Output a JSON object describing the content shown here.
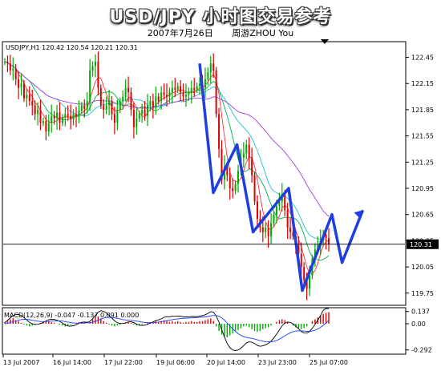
{
  "header": {
    "title": "USD/JPY  小时图交易参考",
    "date": "2007年7月26日",
    "author": "周游ZHOU  You"
  },
  "main_panel": {
    "label": "USDJPY,H1  120.42 120.54 120.21 120.31",
    "current_price_label": "120.31"
  },
  "macd_panel": {
    "label": "MACD(12,26,9) -0.047 -0.137 0.091 0.000"
  },
  "colors": {
    "up_bar": "#00aa00",
    "down_bar": "#dd0000",
    "zigzag": "#1f3ee0",
    "ma_red": "#ff3030",
    "ma_green": "#00b050",
    "ma_cyan": "#20c0d0",
    "ma_violet": "#a040e0"
  },
  "chart_data": [
    {
      "type": "line",
      "name": "price",
      "y_ticks": [
        "122.45",
        "122.15",
        "121.85",
        "121.55",
        "121.25",
        "120.95",
        "120.65",
        "120.35",
        "120.05",
        "119.75"
      ],
      "ylim": [
        119.62,
        122.62
      ],
      "x_ticks": [
        "13 Jul 2007",
        "16 Jul 14:00",
        "17 Jul 22:00",
        "19 Jul 06:00",
        "20 Jul 14:00",
        "23 Jul 23:00",
        "25 Jul 07:00"
      ],
      "current_price": 120.31,
      "candles": {
        "comment": "approximate close values per hourly bar",
        "close": [
          122.4,
          122.38,
          122.3,
          122.32,
          122.2,
          122.1,
          122.15,
          121.98,
          122.02,
          121.95,
          121.9,
          121.8,
          121.85,
          121.7,
          121.72,
          121.6,
          121.7,
          121.78,
          121.75,
          121.82,
          121.7,
          121.76,
          121.8,
          121.78,
          121.74,
          121.8,
          121.78,
          121.84,
          121.9,
          121.86,
          121.95,
          122.3,
          122.35,
          122.4,
          122.1,
          121.9,
          121.85,
          121.9,
          121.95,
          121.8,
          121.7,
          121.85,
          121.95,
          122.0,
          122.1,
          122.05,
          121.85,
          121.65,
          121.75,
          121.8,
          121.85,
          121.78,
          121.9,
          121.95,
          121.88,
          122.0,
          121.95,
          122.05,
          122.02,
          122.0,
          122.05,
          122.1,
          122.08,
          122.12,
          122.05,
          122.0,
          122.02,
          122.05,
          122.1,
          122.08,
          122.12,
          122.15,
          122.1,
          122.2,
          122.28,
          122.38,
          122.3,
          121.8,
          121.4,
          121.05,
          121.2,
          121.1,
          120.95,
          120.92,
          121.0,
          121.15,
          121.3,
          121.35,
          121.45,
          121.3,
          121.1,
          120.8,
          120.6,
          120.5,
          120.45,
          120.5,
          120.4,
          120.55,
          120.65,
          120.75,
          120.8,
          120.88,
          120.7,
          120.5,
          120.45,
          120.4,
          120.3,
          120.2,
          120.05,
          119.9,
          119.8,
          119.95,
          120.15,
          120.25,
          120.3,
          120.35,
          120.42,
          120.38,
          120.31
        ]
      },
      "zigzag": {
        "x": [
          0.0,
          2.3,
          6.3,
          9.0,
          15.0,
          17.3,
          22.3,
          24.0,
          27.5
        ],
        "y": [
          122.38,
          120.9,
          121.45,
          120.45,
          120.95,
          119.78,
          120.65,
          120.1,
          120.7
        ]
      }
    },
    {
      "type": "bar",
      "name": "MACD",
      "y_ticks": [
        "0.137",
        "0.00",
        "-0.292"
      ],
      "ylim": [
        -0.33,
        0.17
      ],
      "histogram": [
        0.02,
        0.04,
        0.05,
        0.06,
        0.04,
        0.03,
        0.01,
        -0.01,
        -0.02,
        -0.03,
        -0.02,
        -0.01,
        0.0,
        0.01,
        0.02,
        0.03,
        0.03,
        0.02,
        0.01,
        0.0,
        -0.01,
        -0.02,
        -0.03,
        -0.02,
        -0.01,
        0.0,
        0.01,
        0.02,
        0.02,
        0.01,
        0.0,
        0.02,
        0.05,
        0.07,
        0.08,
        0.06,
        0.03,
        0.01,
        -0.01,
        -0.02,
        -0.03,
        -0.02,
        -0.01,
        0.0,
        0.01,
        0.02,
        0.01,
        -0.01,
        -0.02,
        -0.02,
        -0.01,
        0.0,
        0.01,
        0.02,
        0.02,
        0.03,
        0.02,
        0.03,
        0.04,
        0.03,
        0.02,
        0.03,
        0.02,
        0.03,
        0.02,
        0.01,
        0.02,
        0.02,
        0.03,
        0.02,
        0.02,
        0.03,
        0.03,
        0.04,
        0.05,
        0.06,
        0.03,
        -0.03,
        -0.08,
        -0.12,
        -0.14,
        -0.15,
        -0.13,
        -0.11,
        -0.09,
        -0.07,
        -0.05,
        -0.03,
        -0.02,
        -0.04,
        -0.06,
        -0.08,
        -0.09,
        -0.08,
        -0.06,
        -0.05,
        -0.04,
        -0.02,
        0.0,
        0.02,
        0.04,
        0.05,
        0.04,
        0.02,
        0.0,
        -0.02,
        -0.04,
        -0.05,
        -0.06,
        -0.05,
        -0.03,
        0.0,
        0.03,
        0.05,
        0.07,
        0.09,
        0.11,
        0.12,
        0.13
      ]
    }
  ]
}
